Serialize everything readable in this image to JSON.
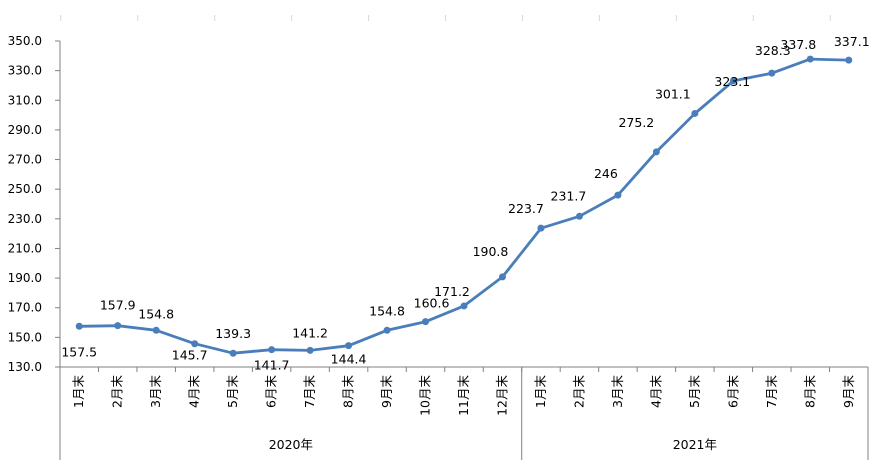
{
  "chart_data": {
    "type": "line",
    "title": "",
    "xlabel": "",
    "ylabel": "",
    "categories": [
      "1月末",
      "2月末",
      "3月末",
      "4月末",
      "5月末",
      "6月末",
      "7月末",
      "8月末",
      "9月末",
      "10月末",
      "11月末",
      "12月末",
      "1月末",
      "2月末",
      "3月末",
      "4月末",
      "5月末",
      "6月末",
      "7月末",
      "8月末",
      "9月末"
    ],
    "groups": [
      {
        "label": "2020年",
        "count": 12
      },
      {
        "label": "2021年",
        "count": 9
      }
    ],
    "series": [
      {
        "values": [
          157.5,
          157.9,
          154.8,
          145.7,
          139.3,
          141.7,
          141.2,
          144.4,
          154.8,
          160.6,
          171.2,
          190.8,
          223.7,
          231.7,
          246,
          275.2,
          301.1,
          323.1,
          328.3,
          337.8,
          337.1
        ],
        "labels": [
          "157.5",
          "157.9",
          "154.8",
          "145.7",
          "139.3",
          "141.7",
          "141.2",
          "144.4",
          "154.8",
          "160.6",
          "171.2",
          "190.8",
          "223.7",
          "231.7",
          "246",
          "275.2",
          "301.1",
          "323.1",
          "328.3",
          "337.8",
          "337.1"
        ],
        "color": "#4A7EBB"
      }
    ],
    "ylim": [
      130,
      350
    ],
    "yticks": [
      "130.0",
      "150.0",
      "170.0",
      "190.0",
      "210.0",
      "230.0",
      "250.0",
      "270.0",
      "290.0",
      "310.0",
      "330.0",
      "350.0"
    ],
    "grid": false,
    "legend": "none"
  }
}
